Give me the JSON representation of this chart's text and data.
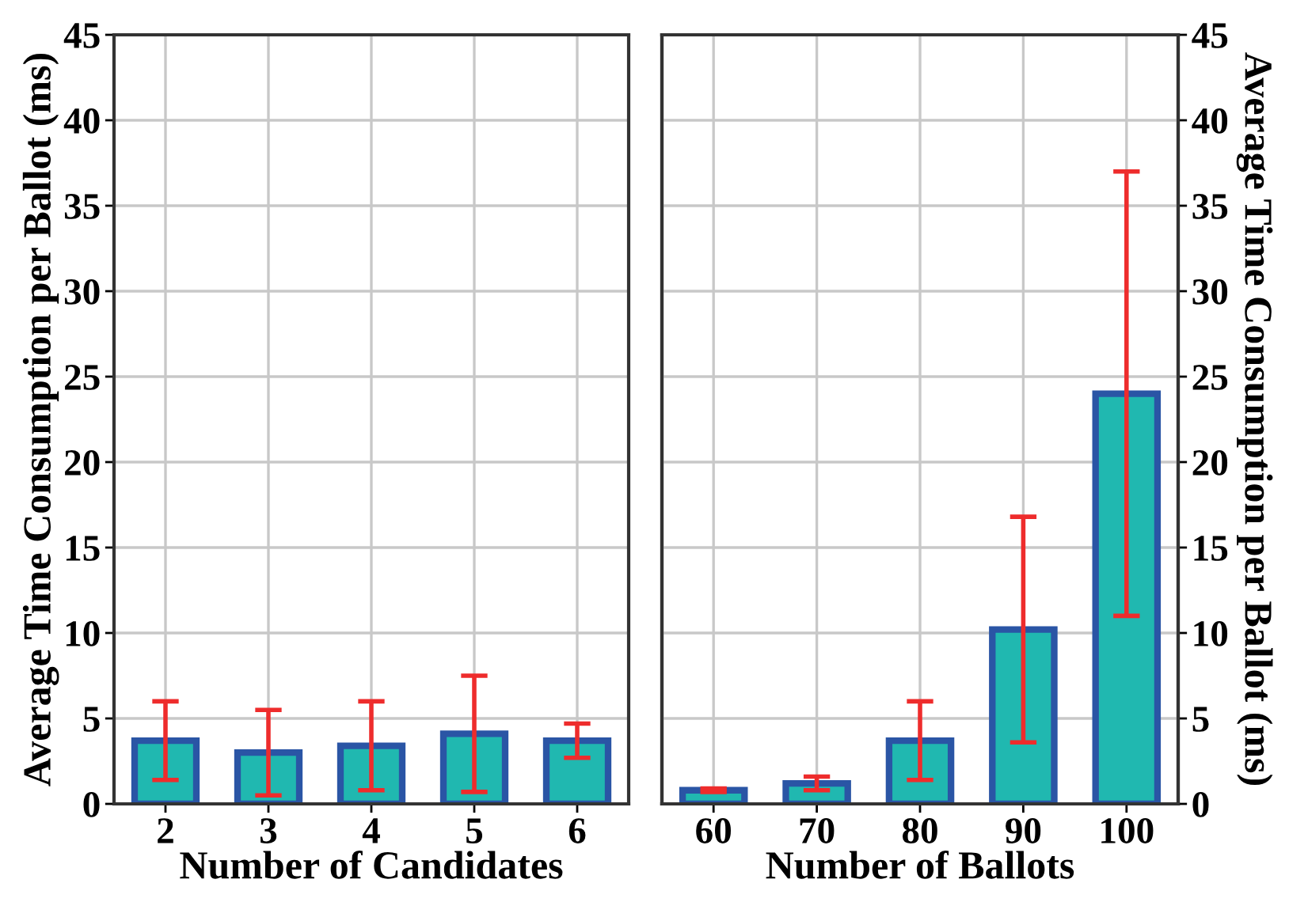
{
  "chart_data": [
    {
      "type": "bar",
      "xlabel": "Number of Candidates",
      "ylabel": "Average Time Consumption per Ballot (ms)",
      "categories": [
        "2",
        "3",
        "4",
        "5",
        "6"
      ],
      "series": [
        {
          "color": "#20b8b0",
          "values": [
            3.7,
            3.0,
            3.4,
            4.1,
            3.7
          ],
          "errors": [
            2.3,
            2.5,
            2.6,
            3.4,
            1.0
          ]
        }
      ],
      "ylim": [
        0,
        45
      ],
      "yticks": [
        0,
        5,
        10,
        15,
        20,
        25,
        30,
        35,
        40,
        45
      ],
      "grid": true,
      "legend": false
    },
    {
      "type": "bar",
      "xlabel": "Number of Ballots",
      "y2label": "Average Time Consumption per Ballot (ms)",
      "categories": [
        "60",
        "70",
        "80",
        "90",
        "100"
      ],
      "series": [
        {
          "axis": "y2",
          "color": "#20b8b0",
          "values": [
            0.8,
            1.2,
            3.7,
            10.2,
            24.0
          ],
          "errors": [
            0.1,
            0.4,
            2.3,
            6.6,
            13.0
          ]
        }
      ],
      "y2lim": [
        0,
        45
      ],
      "y2ticks": [
        0,
        5,
        10,
        15,
        20,
        25,
        30,
        35,
        40,
        45
      ],
      "grid": true,
      "legend": false
    }
  ]
}
